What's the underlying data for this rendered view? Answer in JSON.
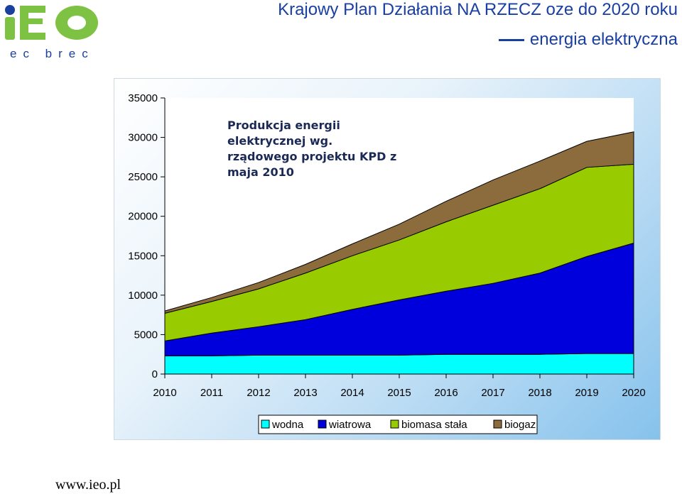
{
  "header": {
    "logo_sub": "ec brec",
    "title": "Krajowy Plan Działania NA RZECZ oze do 2020 roku",
    "subtitle": "energia elektryczna"
  },
  "footer": {
    "url": "www.ieo.pl"
  },
  "colors": {
    "title": "#1a3fa3",
    "logo_green": "#7dc242",
    "logo_blue": "#1a3f9e"
  },
  "chart_data": {
    "type": "area",
    "stacked": true,
    "categories": [
      "2010",
      "2011",
      "2012",
      "2013",
      "2014",
      "2015",
      "2016",
      "2017",
      "2018",
      "2019",
      "2020"
    ],
    "series": [
      {
        "name": "wodna",
        "color": "#00ffff",
        "values": [
          2300,
          2300,
          2400,
          2400,
          2400,
          2400,
          2500,
          2500,
          2500,
          2600,
          2600
        ]
      },
      {
        "name": "wiatrowa",
        "color": "#0000dd",
        "values": [
          1900,
          2900,
          3600,
          4500,
          5800,
          7000,
          8000,
          9000,
          10300,
          12300,
          14000
        ]
      },
      {
        "name": "biomasa stała",
        "color": "#99cc00",
        "values": [
          3500,
          4000,
          4800,
          5900,
          6800,
          7600,
          8800,
          9900,
          10700,
          11300,
          10000
        ]
      },
      {
        "name": "biogaz",
        "color": "#8c6b3c",
        "values": [
          300,
          500,
          800,
          1100,
          1500,
          2000,
          2600,
          3200,
          3500,
          3300,
          4100
        ]
      }
    ],
    "y_ticks": [
      0,
      5000,
      10000,
      15000,
      20000,
      25000,
      30000,
      35000
    ],
    "ylim": [
      0,
      35000
    ],
    "annotation": [
      "Produkcja energii",
      "elektrycznej wg.",
      "rządowego projektu KPD z",
      "maja 2010"
    ],
    "legend_position": "bottom",
    "grid": false
  }
}
